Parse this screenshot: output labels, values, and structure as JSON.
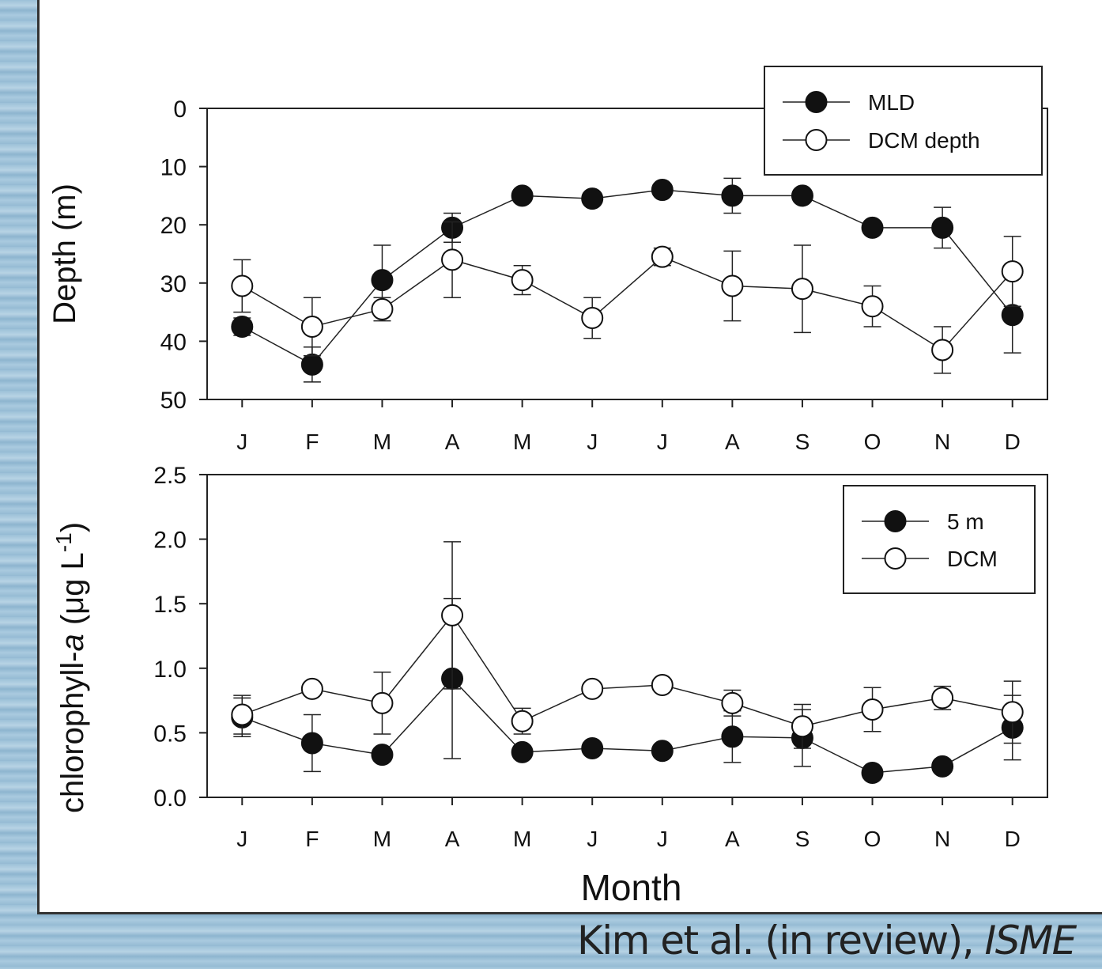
{
  "chart_data": [
    {
      "type": "line",
      "y_label": "Depth (m)",
      "categories": [
        "J",
        "F",
        "M",
        "A",
        "M",
        "J",
        "J",
        "A",
        "S",
        "O",
        "N",
        "D"
      ],
      "ylim": [
        0,
        50
      ],
      "y_inverted": true,
      "yticks": [
        0,
        10,
        20,
        30,
        40,
        50
      ],
      "legend": "upper right",
      "series": [
        {
          "name": "MLD",
          "color": "#111111",
          "values": [
            37.5,
            44,
            29.5,
            20.5,
            15,
            15.5,
            14,
            15,
            15,
            20.5,
            20.5,
            35.5
          ],
          "errors": [
            1.5,
            3,
            6,
            2.5,
            0,
            0,
            0,
            3,
            0,
            0,
            3.5,
            6.5
          ]
        },
        {
          "name": "DCM depth",
          "color": "#ffffff",
          "values": [
            30.5,
            37.5,
            34.5,
            26,
            29.5,
            36,
            25.5,
            30.5,
            31,
            34,
            41.5,
            28
          ],
          "errors": [
            4.5,
            5,
            2,
            6.5,
            2.5,
            3.5,
            1.5,
            6,
            7.5,
            3.5,
            4,
            6
          ]
        }
      ]
    },
    {
      "type": "line",
      "y_label_parts": [
        "chlorophyll-",
        "a",
        " (μg L",
        "-1",
        ")"
      ],
      "x_label": "Month",
      "categories": [
        "J",
        "F",
        "M",
        "A",
        "M",
        "J",
        "J",
        "A",
        "S",
        "O",
        "N",
        "D"
      ],
      "ylim": [
        0,
        2.5
      ],
      "yticks": [
        {
          "value": 0,
          "label": "0.0"
        },
        0.5,
        {
          "value": 1,
          "label": "1.0"
        },
        1.5,
        {
          "value": 2,
          "label": "2.0"
        },
        2.5
      ],
      "legend": "upper right",
      "series": [
        {
          "name": "5 m",
          "color": "#111111",
          "values": [
            0.62,
            0.42,
            0.33,
            0.92,
            0.35,
            0.38,
            0.36,
            0.47,
            0.46,
            0.19,
            0.24,
            0.54
          ],
          "errors": [
            0.15,
            0.22,
            0.05,
            0.62,
            0.05,
            0,
            0,
            0.2,
            0.22,
            0,
            0,
            0.25
          ]
        },
        {
          "name": "DCM",
          "color": "#ffffff",
          "values": [
            0.64,
            0.84,
            0.73,
            1.41,
            0.59,
            0.84,
            0.87,
            0.73,
            0.55,
            0.68,
            0.77,
            0.66
          ],
          "errors": [
            0.15,
            0,
            0.24,
            0.57,
            0.1,
            0,
            0,
            0.1,
            0.17,
            0.17,
            0.09,
            0.24
          ]
        }
      ]
    }
  ],
  "citation": {
    "text": "Kim et al. (in review), ",
    "journal": "ISME"
  }
}
